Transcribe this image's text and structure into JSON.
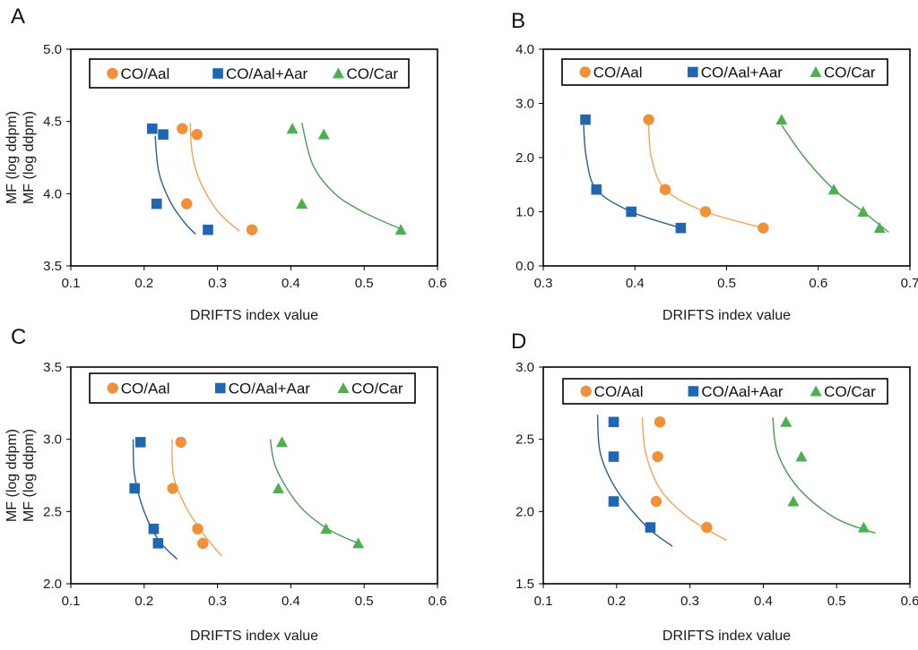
{
  "chart_data": [
    {
      "panel": "A",
      "type": "scatter",
      "xlabel": "DRIFTS index value",
      "ylabel": "MF (log ddpm)",
      "xlim": [
        0.1,
        0.6
      ],
      "ylim": [
        3.5,
        5.0
      ],
      "xticks": [
        "0.1",
        "0.2",
        "0.3",
        "0.4",
        "0.5",
        "0.6"
      ],
      "yticks": [
        "3.5",
        "4.0",
        "4.5",
        "5.0"
      ],
      "legend": "top",
      "series": [
        {
          "name": "CO/Aal",
          "marker": "circle",
          "color": "#f0913a",
          "points": [
            [
              0.252,
              4.45
            ],
            [
              0.272,
              4.41
            ],
            [
              0.258,
              3.93
            ],
            [
              0.347,
              3.75
            ]
          ],
          "fit": [
            [
              0.263,
              4.49
            ],
            [
              0.265,
              4.3
            ],
            [
              0.275,
              4.1
            ],
            [
              0.3,
              3.88
            ],
            [
              0.33,
              3.74
            ]
          ]
        },
        {
          "name": "CO/Aal+Aar",
          "marker": "square",
          "color": "#1f67b1",
          "points": [
            [
              0.211,
              4.45
            ],
            [
              0.226,
              4.41
            ],
            [
              0.217,
              3.93
            ],
            [
              0.287,
              3.75
            ]
          ],
          "fit": [
            [
              0.215,
              4.4
            ],
            [
              0.22,
              4.15
            ],
            [
              0.235,
              3.95
            ],
            [
              0.255,
              3.8
            ],
            [
              0.27,
              3.72
            ]
          ]
        },
        {
          "name": "CO/Car",
          "marker": "triangle",
          "color": "#4caf50",
          "points": [
            [
              0.402,
              4.45
            ],
            [
              0.445,
              4.41
            ],
            [
              0.415,
              3.93
            ],
            [
              0.55,
              3.75
            ]
          ],
          "fit": [
            [
              0.415,
              4.49
            ],
            [
              0.43,
              4.2
            ],
            [
              0.46,
              4.0
            ],
            [
              0.5,
              3.87
            ],
            [
              0.548,
              3.76
            ]
          ]
        }
      ]
    },
    {
      "panel": "B",
      "type": "scatter",
      "xlabel": "DRIFTS index value",
      "ylabel": "MF (log ddpm)",
      "xlim": [
        0.3,
        0.7
      ],
      "ylim": [
        0.0,
        4.0
      ],
      "xticks": [
        "0.3",
        "0.4",
        "0.5",
        "0.6",
        "0.7"
      ],
      "yticks": [
        "0.0",
        "1.0",
        "2.0",
        "3.0",
        "4.0"
      ],
      "legend": "top",
      "series": [
        {
          "name": "CO/Aal",
          "marker": "circle",
          "color": "#f0913a",
          "points": [
            [
              0.415,
              2.7
            ],
            [
              0.433,
              1.41
            ],
            [
              0.477,
              1.0
            ],
            [
              0.54,
              0.7
            ]
          ],
          "fit": [
            [
              0.415,
              2.6
            ],
            [
              0.418,
              2.0
            ],
            [
              0.433,
              1.41
            ],
            [
              0.477,
              1.0
            ],
            [
              0.54,
              0.7
            ]
          ]
        },
        {
          "name": "CO/Aal+Aar",
          "marker": "square",
          "color": "#1f67b1",
          "points": [
            [
              0.346,
              2.7
            ],
            [
              0.358,
              1.41
            ],
            [
              0.396,
              1.0
            ],
            [
              0.45,
              0.7
            ]
          ],
          "fit": [
            [
              0.344,
              2.6
            ],
            [
              0.347,
              2.0
            ],
            [
              0.358,
              1.41
            ],
            [
              0.396,
              1.0
            ],
            [
              0.45,
              0.7
            ]
          ]
        },
        {
          "name": "CO/Car",
          "marker": "triangle",
          "color": "#4caf50",
          "points": [
            [
              0.56,
              2.7
            ],
            [
              0.617,
              1.41
            ],
            [
              0.649,
              1.0
            ],
            [
              0.667,
              0.7
            ]
          ],
          "fit": [
            [
              0.56,
              2.6
            ],
            [
              0.585,
              2.0
            ],
            [
              0.617,
              1.41
            ],
            [
              0.649,
              1.0
            ],
            [
              0.677,
              0.62
            ]
          ]
        }
      ]
    },
    {
      "panel": "C",
      "type": "scatter",
      "xlabel": "DRIFTS index value",
      "ylabel": "MF (log ddpm)",
      "xlim": [
        0.1,
        0.6
      ],
      "ylim": [
        2.0,
        3.5
      ],
      "xticks": [
        "0.1",
        "0.2",
        "0.3",
        "0.4",
        "0.5",
        "0.6"
      ],
      "yticks": [
        "2.0",
        "2.5",
        "3.0",
        "3.5"
      ],
      "legend": "top",
      "series": [
        {
          "name": "CO/Aal",
          "marker": "circle",
          "color": "#f0913a",
          "points": [
            [
              0.25,
              2.98
            ],
            [
              0.239,
              2.66
            ],
            [
              0.273,
              2.38
            ],
            [
              0.28,
              2.28
            ]
          ],
          "fit": [
            [
              0.238,
              3.0
            ],
            [
              0.24,
              2.75
            ],
            [
              0.255,
              2.55
            ],
            [
              0.28,
              2.35
            ],
            [
              0.306,
              2.19
            ]
          ]
        },
        {
          "name": "CO/Aal+Aar",
          "marker": "square",
          "color": "#1f67b1",
          "points": [
            [
              0.195,
              2.98
            ],
            [
              0.187,
              2.66
            ],
            [
              0.213,
              2.38
            ],
            [
              0.219,
              2.28
            ]
          ],
          "fit": [
            [
              0.185,
              3.0
            ],
            [
              0.187,
              2.75
            ],
            [
              0.2,
              2.5
            ],
            [
              0.22,
              2.3
            ],
            [
              0.245,
              2.17
            ]
          ]
        },
        {
          "name": "CO/Car",
          "marker": "triangle",
          "color": "#4caf50",
          "points": [
            [
              0.388,
              2.98
            ],
            [
              0.383,
              2.66
            ],
            [
              0.448,
              2.38
            ],
            [
              0.492,
              2.28
            ]
          ],
          "fit": [
            [
              0.372,
              3.0
            ],
            [
              0.38,
              2.8
            ],
            [
              0.41,
              2.55
            ],
            [
              0.45,
              2.38
            ],
            [
              0.492,
              2.28
            ]
          ]
        }
      ]
    },
    {
      "panel": "D",
      "type": "scatter",
      "xlabel": "DRIFTS index value",
      "ylabel": "MF (log ddpm)",
      "xlim": [
        0.1,
        0.6
      ],
      "ylim": [
        1.5,
        3.0
      ],
      "xticks": [
        "0.1",
        "0.2",
        "0.3",
        "0.4",
        "0.5",
        "0.6"
      ],
      "yticks": [
        "1.5",
        "2.0",
        "2.5",
        "3.0"
      ],
      "legend": "top",
      "series": [
        {
          "name": "CO/Aal",
          "marker": "circle",
          "color": "#f0913a",
          "points": [
            [
              0.259,
              2.62
            ],
            [
              0.256,
              2.38
            ],
            [
              0.254,
              2.07
            ],
            [
              0.323,
              1.89
            ]
          ],
          "fit": [
            [
              0.235,
              2.65
            ],
            [
              0.24,
              2.4
            ],
            [
              0.26,
              2.15
            ],
            [
              0.3,
              1.95
            ],
            [
              0.35,
              1.8
            ]
          ]
        },
        {
          "name": "CO/Aal+Aar",
          "marker": "square",
          "color": "#1f67b1",
          "points": [
            [
              0.196,
              2.62
            ],
            [
              0.196,
              2.38
            ],
            [
              0.196,
              2.07
            ],
            [
              0.246,
              1.89
            ]
          ],
          "fit": [
            [
              0.174,
              2.67
            ],
            [
              0.178,
              2.4
            ],
            [
              0.2,
              2.15
            ],
            [
              0.24,
              1.9
            ],
            [
              0.276,
              1.76
            ]
          ]
        },
        {
          "name": "CO/Car",
          "marker": "triangle",
          "color": "#4caf50",
          "points": [
            [
              0.431,
              2.62
            ],
            [
              0.452,
              2.38
            ],
            [
              0.441,
              2.07
            ],
            [
              0.537,
              1.89
            ]
          ],
          "fit": [
            [
              0.413,
              2.65
            ],
            [
              0.42,
              2.4
            ],
            [
              0.45,
              2.15
            ],
            [
              0.5,
              1.95
            ],
            [
              0.553,
              1.85
            ]
          ]
        }
      ]
    }
  ]
}
